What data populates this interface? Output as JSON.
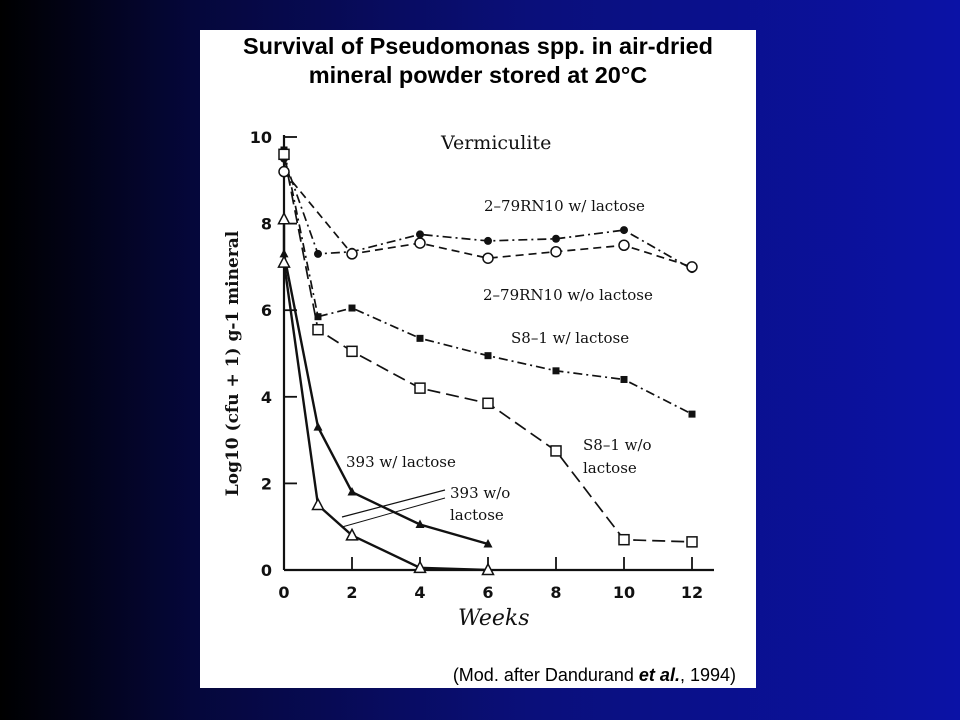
{
  "slide": {
    "title_line1": "Survival of Pseudomonas spp. in air-dried",
    "title_line2": "mineral powder stored at 20°C",
    "citation_prefix": "(Mod. after Dandurand ",
    "citation_etal": "et al.",
    "citation_suffix": ", 1994)"
  },
  "chart_data": {
    "type": "line",
    "title": "Survival of Pseudomonas spp. in air-dried mineral powder stored at 20°C",
    "panel_label": "Vermiculite",
    "xlabel": "Weeks",
    "ylabel": "Log10 (cfu + 1) g-1 mineral",
    "xlim": [
      0,
      12
    ],
    "ylim": [
      0,
      10
    ],
    "x_ticks": [
      0,
      2,
      4,
      6,
      8,
      10,
      12
    ],
    "y_ticks": [
      0,
      2,
      4,
      6,
      8,
      10
    ],
    "grid": false,
    "series": [
      {
        "name": "2-79RN10 w/ lactose",
        "marker": "filled-circle",
        "dash": "dashdot",
        "x": [
          0,
          1,
          2,
          4,
          6,
          8,
          10,
          12
        ],
        "y": [
          9.5,
          7.3,
          7.35,
          7.75,
          7.6,
          7.65,
          7.85,
          6.95
        ]
      },
      {
        "name": "2-79RN10 w/o lactose",
        "marker": "open-circle",
        "dash": "dash",
        "x": [
          0,
          2,
          4,
          6,
          8,
          10,
          12
        ],
        "y": [
          9.2,
          7.3,
          7.55,
          7.2,
          7.35,
          7.5,
          7.0
        ]
      },
      {
        "name": "S8-1 w/ lactose",
        "marker": "filled-square",
        "dash": "dashdot",
        "x": [
          0,
          1,
          2,
          4,
          6,
          8,
          10,
          12
        ],
        "y": [
          9.7,
          5.85,
          6.05,
          5.35,
          4.95,
          4.6,
          4.4,
          3.6
        ]
      },
      {
        "name": "S8-1 w/o lactose",
        "marker": "open-square",
        "dash": "longdash",
        "x": [
          0,
          1,
          2,
          4,
          6,
          8,
          10,
          12
        ],
        "y": [
          9.6,
          5.55,
          5.05,
          4.2,
          3.85,
          2.75,
          0.7,
          0.65
        ]
      },
      {
        "name": "393 w/ lactose",
        "marker": "filled-triangle",
        "dash": "solid",
        "x": [
          0,
          1,
          2,
          4,
          6
        ],
        "y": [
          7.3,
          3.3,
          1.8,
          1.05,
          0.6
        ]
      },
      {
        "name": "393 w/o lactose",
        "marker": "open-triangle",
        "dash": "solid",
        "x": [
          0,
          0,
          1,
          2,
          4,
          6
        ],
        "y": [
          8.1,
          7.1,
          1.5,
          0.8,
          0.05,
          0.0
        ]
      }
    ],
    "annotations": [
      {
        "text": "2–79RN10 w/ lactose"
      },
      {
        "text": "2–79RN10 w/o lactose"
      },
      {
        "text": "S8–1 w/ lactose"
      },
      {
        "text": "S8–1 w/o"
      },
      {
        "text": "lactose"
      },
      {
        "text": "393 w/ lactose"
      },
      {
        "text": "393 w/o"
      },
      {
        "text": "lactose"
      }
    ]
  }
}
